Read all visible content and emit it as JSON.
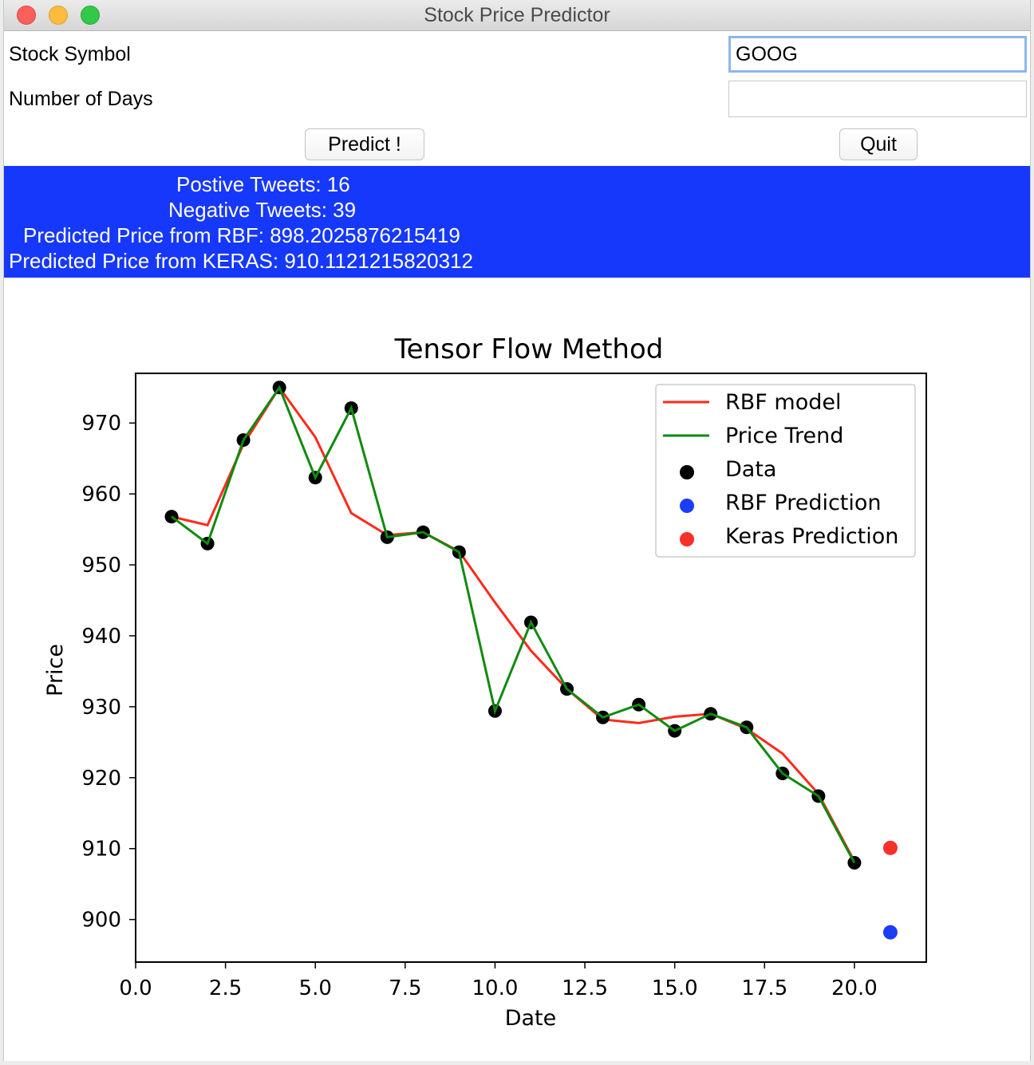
{
  "window": {
    "title": "Stock Price Predictor"
  },
  "form": {
    "stock_symbol_label": "Stock Symbol",
    "stock_symbol_value": "GOOG",
    "days_label": "Number of Days",
    "days_value": "",
    "predict_label": "Predict !",
    "quit_label": "Quit"
  },
  "results": {
    "positive": "Postive Tweets: 16",
    "negative": "Negative Tweets: 39",
    "rbf": "Predicted Price from RBF: 898.2025876215419",
    "keras": "Predicted Price from KERAS: 910.1121215820312"
  },
  "colors": {
    "results_bg": "#1638fb",
    "rbf_line": "#ff2a1a",
    "trend_line": "#0f8a0f",
    "data_points": "#000000",
    "rbf_prediction": "#1a3df5",
    "keras_prediction": "#f8302a"
  },
  "chart_data": {
    "type": "line",
    "title": "Tensor Flow Method",
    "xlabel": "Date",
    "ylabel": "Price",
    "xlim": [
      0,
      22
    ],
    "ylim": [
      894,
      977
    ],
    "xticks": [
      0,
      2.5,
      5,
      7.5,
      10,
      12.5,
      15,
      17.5,
      20
    ],
    "xtick_labels": [
      "0.0",
      "2.5",
      "5.0",
      "7.5",
      "10.0",
      "12.5",
      "15.0",
      "17.5",
      "20.0"
    ],
    "yticks": [
      900,
      910,
      920,
      930,
      940,
      950,
      960,
      970
    ],
    "ytick_labels": [
      "900",
      "910",
      "920",
      "930",
      "940",
      "950",
      "960",
      "970"
    ],
    "grid": false,
    "legend_position": "top-right",
    "x": [
      1,
      2,
      3,
      4,
      5,
      6,
      7,
      8,
      9,
      10,
      11,
      12,
      13,
      14,
      15,
      16,
      17,
      18,
      19,
      20
    ],
    "data": [
      956.8,
      953.0,
      967.6,
      975.0,
      962.3,
      972.1,
      953.9,
      954.6,
      951.8,
      929.4,
      941.9,
      932.5,
      928.5,
      930.3,
      926.6,
      929.0,
      927.1,
      920.6,
      917.4,
      908.0
    ],
    "rbf_model": [
      956.8,
      955.6,
      967.0,
      975.0,
      968.0,
      957.3,
      954.2,
      954.6,
      951.9,
      944.7,
      937.9,
      932.5,
      928.2,
      927.7,
      928.6,
      929.0,
      926.9,
      923.4,
      917.7,
      908.2
    ],
    "price_trend": [
      956.8,
      953.0,
      967.6,
      975.0,
      962.3,
      972.1,
      953.9,
      954.6,
      951.8,
      929.4,
      941.9,
      932.5,
      928.5,
      930.3,
      926.6,
      929.0,
      927.1,
      920.6,
      917.4,
      908.0
    ],
    "rbf_prediction": {
      "x": 21,
      "y": 898.2
    },
    "keras_prediction": {
      "x": 21,
      "y": 910.1
    },
    "legend": [
      "RBF model",
      "Price Trend",
      "Data",
      "RBF Prediction",
      "Keras Prediction"
    ]
  }
}
